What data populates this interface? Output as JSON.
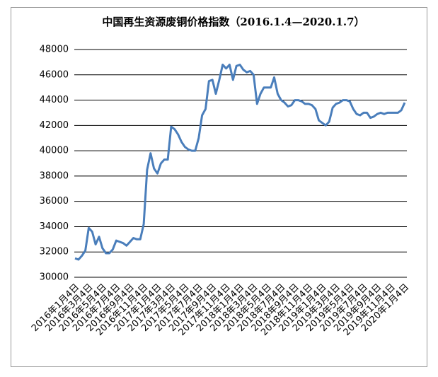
{
  "chart_data": {
    "type": "line",
    "title": "中国再生资源废铜价格指数（2016.1.4—2020.1.7）",
    "categories": [
      "2016年1月4日",
      null,
      null,
      null,
      "2016年3月4日",
      null,
      null,
      null,
      "2016年5月4日",
      null,
      null,
      null,
      "2016年7月4日",
      null,
      null,
      null,
      "2016年9月4日",
      null,
      null,
      null,
      "2016年11月4日",
      null,
      null,
      null,
      "2017年1月4日",
      null,
      null,
      null,
      "2017年3月4日",
      null,
      null,
      null,
      "2017年5月4日",
      null,
      null,
      null,
      "2017年7月4日",
      null,
      null,
      null,
      "2017年9月4日",
      null,
      null,
      null,
      "2017年11月4日",
      null,
      null,
      null,
      "2018年1月4日",
      null,
      null,
      null,
      "2018年3月4日",
      null,
      null,
      null,
      "2018年5月4日",
      null,
      null,
      null,
      "2018年7月4日",
      null,
      null,
      null,
      "2018年9月4日",
      null,
      null,
      null,
      "2018年11月4日",
      null,
      null,
      null,
      "2019年1月4日",
      null,
      null,
      null,
      "2019年3月4日",
      null,
      null,
      null,
      "2019年5月4日",
      null,
      null,
      null,
      "2019年7月4日",
      null,
      null,
      null,
      "2019年9月4日",
      null,
      null,
      null,
      "2019年11月4日",
      null,
      null,
      null,
      "2020年1月4日"
    ],
    "series": [
      {
        "color": "#4a7ebb",
        "values": [
          31500,
          31400,
          31700,
          32100,
          33900,
          33600,
          32600,
          33200,
          32300,
          31900,
          31900,
          32200,
          32900,
          32800,
          32700,
          32500,
          32800,
          33100,
          33000,
          33000,
          34200,
          38500,
          39800,
          38600,
          38200,
          39000,
          39300,
          39300,
          41900,
          41700,
          41300,
          40700,
          40300,
          40100,
          40000,
          40000,
          41000,
          42800,
          43300,
          45500,
          45600,
          44500,
          45600,
          46800,
          46500,
          46800,
          45600,
          46700,
          46800,
          46400,
          46200,
          46300,
          46000,
          43700,
          44500,
          45000,
          45000,
          45000,
          45800,
          44500,
          44000,
          43800,
          43500,
          43600,
          44000,
          44000,
          43900,
          43700,
          43700,
          43600,
          43300,
          42400,
          42200,
          42000,
          42300,
          43400,
          43700,
          43800,
          44000,
          44000,
          43900,
          43300,
          42900,
          42800,
          43000,
          43000,
          42600,
          42700,
          42900,
          43000,
          42900,
          43000,
          43000,
          43000,
          43000,
          43200,
          43800
        ]
      }
    ],
    "ylim": [
      30000,
      48000
    ],
    "yticks": [
      30000,
      32000,
      34000,
      36000,
      38000,
      40000,
      42000,
      44000,
      46000,
      48000
    ],
    "grid": true
  }
}
